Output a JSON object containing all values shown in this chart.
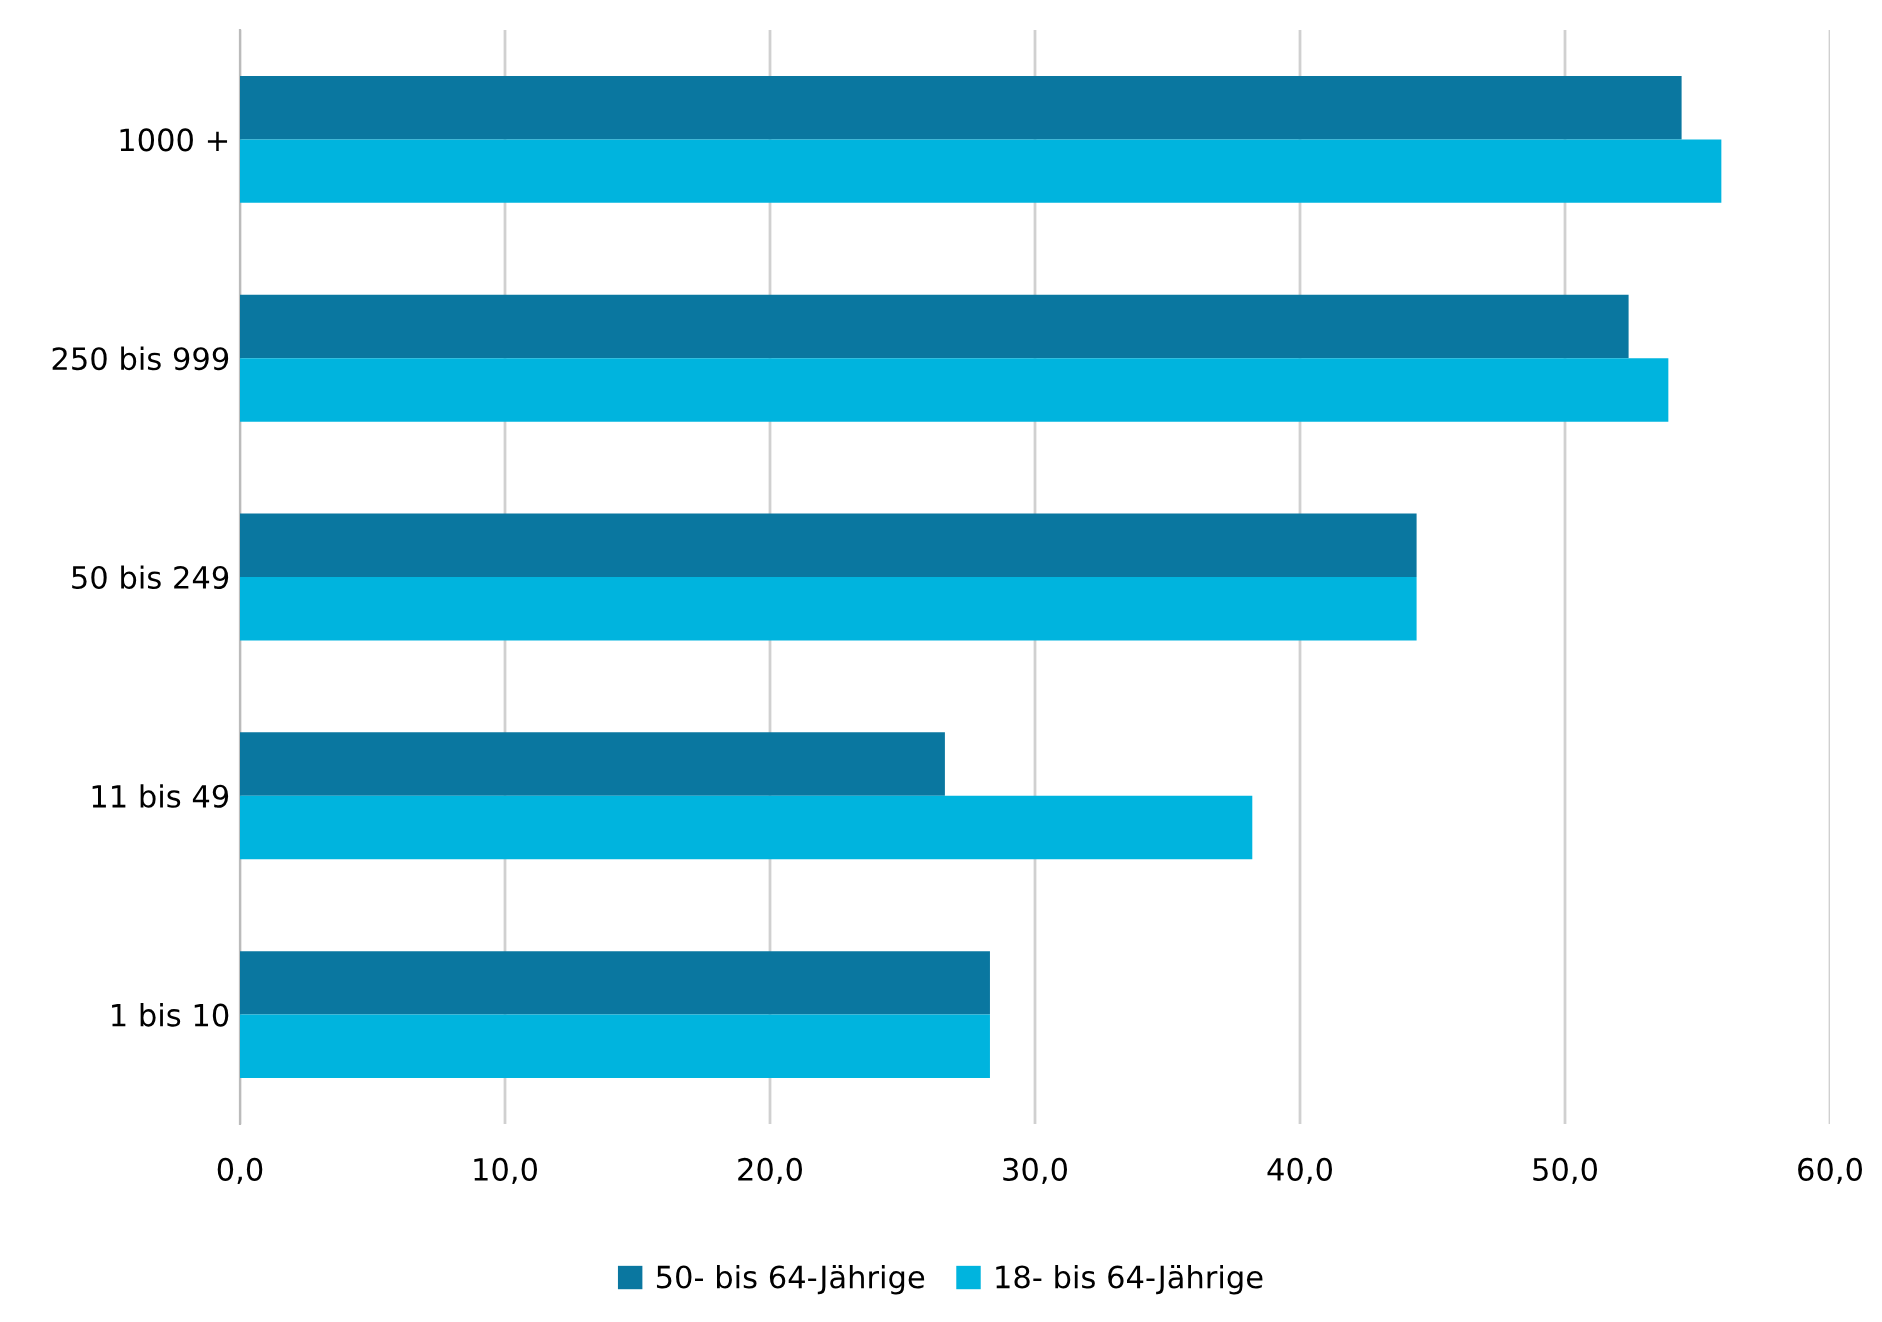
{
  "chart_data": {
    "type": "bar",
    "orientation": "horizontal",
    "categories": [
      "1000 +",
      "250 bis 999",
      "50 bis 249",
      "11 bis 49",
      "1 bis 10"
    ],
    "series": [
      {
        "name": "50- bis 64-Jährige",
        "color": "#0a77a0",
        "values": [
          54.4,
          52.4,
          44.4,
          26.6,
          28.3
        ]
      },
      {
        "name": "18- bis 64-Jährige",
        "color": "#00b4de",
        "values": [
          55.9,
          53.9,
          44.4,
          38.2,
          28.3
        ]
      }
    ],
    "xlim": [
      0,
      60
    ],
    "xticks": [
      {
        "value": 0,
        "label": "0,0"
      },
      {
        "value": 10,
        "label": "10,0"
      },
      {
        "value": 20,
        "label": "20,0"
      },
      {
        "value": 30,
        "label": "30,0"
      },
      {
        "value": 40,
        "label": "40,0"
      },
      {
        "value": 50,
        "label": "50,0"
      },
      {
        "value": 60,
        "label": "60,0"
      }
    ],
    "grid": "x",
    "legend": "bottom"
  }
}
